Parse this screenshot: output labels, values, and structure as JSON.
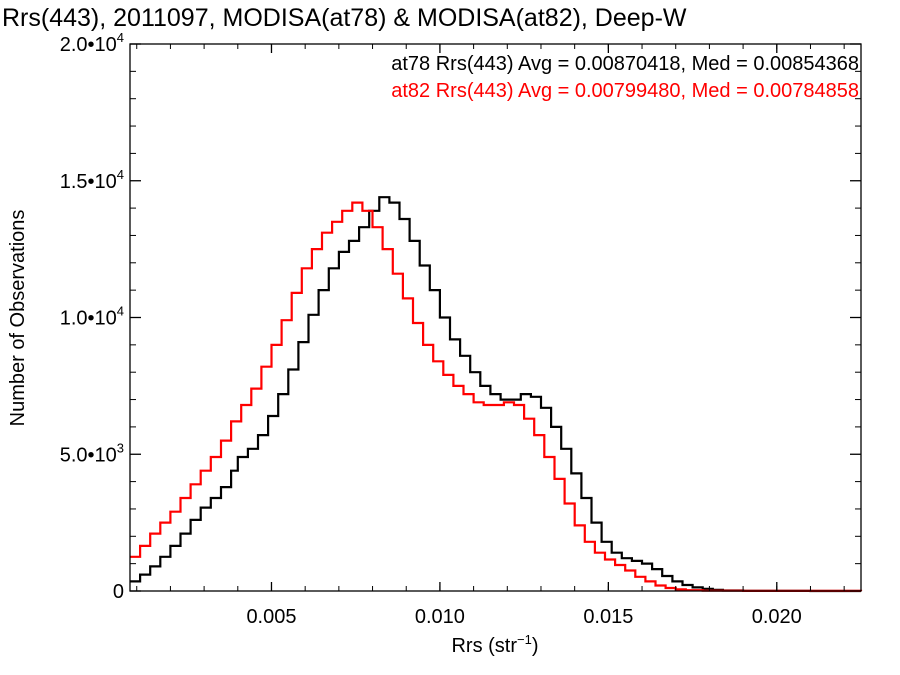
{
  "chart_data": {
    "type": "line",
    "title": "Rrs(443), 2011097, MODISA(at78) & MODISA(at82), Deep-W",
    "xlabel": "Rrs (str",
    "xlabel_sup": "−1",
    "xlabel_suffix": ")",
    "ylabel": "Number of Observations",
    "xlim": [
      0.0008,
      0.0225
    ],
    "ylim": [
      0,
      20000
    ],
    "x_ticks": [
      {
        "value": 0.005,
        "label": "0.005"
      },
      {
        "value": 0.01,
        "label": "0.010"
      },
      {
        "value": 0.015,
        "label": "0.015"
      },
      {
        "value": 0.02,
        "label": "0.020"
      }
    ],
    "y_ticks": [
      {
        "value": 0,
        "label": "0",
        "sup": ""
      },
      {
        "value": 5000,
        "label": "5.0•10",
        "sup": "3"
      },
      {
        "value": 10000,
        "label": "1.0•10",
        "sup": "4"
      },
      {
        "value": 15000,
        "label": "1.5•10",
        "sup": "4"
      },
      {
        "value": 20000,
        "label": "2.0•10",
        "sup": "4"
      }
    ],
    "legend": [
      {
        "text": "at78 Rrs(443) Avg = 0.00870418, Med = 0.00854368",
        "color": "#000000"
      },
      {
        "text": "at82 Rrs(443) Avg = 0.00799480, Med = 0.00784858",
        "color": "#ff0000"
      }
    ],
    "legend_placement": "top-right",
    "grid": false,
    "step_style": true,
    "series": [
      {
        "name": "at78",
        "color": "#000000",
        "points": [
          [
            0.0008,
            350
          ],
          [
            0.0011,
            600
          ],
          [
            0.0014,
            900
          ],
          [
            0.0017,
            1250
          ],
          [
            0.002,
            1650
          ],
          [
            0.0023,
            2100
          ],
          [
            0.0026,
            2600
          ],
          [
            0.0029,
            3050
          ],
          [
            0.0032,
            3400
          ],
          [
            0.0035,
            3800
          ],
          [
            0.0038,
            4400
          ],
          [
            0.004,
            4900
          ],
          [
            0.0043,
            5200
          ],
          [
            0.0046,
            5700
          ],
          [
            0.0049,
            6400
          ],
          [
            0.0052,
            7200
          ],
          [
            0.0055,
            8100
          ],
          [
            0.0058,
            9100
          ],
          [
            0.0061,
            10100
          ],
          [
            0.0064,
            11000
          ],
          [
            0.0067,
            11800
          ],
          [
            0.007,
            12400
          ],
          [
            0.0073,
            12800
          ],
          [
            0.0076,
            13300
          ],
          [
            0.0079,
            13900
          ],
          [
            0.0082,
            14400
          ],
          [
            0.0085,
            14200
          ],
          [
            0.0088,
            13600
          ],
          [
            0.0091,
            12800
          ],
          [
            0.0094,
            11900
          ],
          [
            0.0097,
            11000
          ],
          [
            0.01,
            10000
          ],
          [
            0.0103,
            9200
          ],
          [
            0.0106,
            8600
          ],
          [
            0.0109,
            8000
          ],
          [
            0.0112,
            7500
          ],
          [
            0.0115,
            7200
          ],
          [
            0.0118,
            7000
          ],
          [
            0.0121,
            7000
          ],
          [
            0.0124,
            7200
          ],
          [
            0.0127,
            7100
          ],
          [
            0.013,
            6700
          ],
          [
            0.0133,
            6000
          ],
          [
            0.0136,
            5200
          ],
          [
            0.0139,
            4300
          ],
          [
            0.0142,
            3400
          ],
          [
            0.0145,
            2500
          ],
          [
            0.0148,
            1800
          ],
          [
            0.0151,
            1400
          ],
          [
            0.0154,
            1200
          ],
          [
            0.0157,
            1100
          ],
          [
            0.016,
            1000
          ],
          [
            0.0163,
            800
          ],
          [
            0.0166,
            550
          ],
          [
            0.0169,
            350
          ],
          [
            0.0172,
            220
          ],
          [
            0.0175,
            130
          ],
          [
            0.0178,
            80
          ],
          [
            0.0181,
            40
          ],
          [
            0.0184,
            20
          ],
          [
            0.019,
            8
          ],
          [
            0.02,
            3
          ],
          [
            0.021,
            1
          ],
          [
            0.0225,
            0
          ]
        ]
      },
      {
        "name": "at82",
        "color": "#ff0000",
        "points": [
          [
            0.0008,
            1250
          ],
          [
            0.0011,
            1650
          ],
          [
            0.0014,
            2100
          ],
          [
            0.0017,
            2500
          ],
          [
            0.002,
            2900
          ],
          [
            0.0023,
            3400
          ],
          [
            0.0026,
            3900
          ],
          [
            0.0029,
            4400
          ],
          [
            0.0032,
            4900
          ],
          [
            0.0035,
            5500
          ],
          [
            0.0038,
            6200
          ],
          [
            0.0041,
            6800
          ],
          [
            0.0044,
            7400
          ],
          [
            0.0047,
            8200
          ],
          [
            0.005,
            9000
          ],
          [
            0.0053,
            9900
          ],
          [
            0.0056,
            10900
          ],
          [
            0.0059,
            11800
          ],
          [
            0.0062,
            12500
          ],
          [
            0.0065,
            13100
          ],
          [
            0.0068,
            13500
          ],
          [
            0.0071,
            13900
          ],
          [
            0.0074,
            14200
          ],
          [
            0.0077,
            13900
          ],
          [
            0.008,
            13300
          ],
          [
            0.0083,
            12500
          ],
          [
            0.0086,
            11600
          ],
          [
            0.0089,
            10700
          ],
          [
            0.0092,
            9800
          ],
          [
            0.0095,
            9000
          ],
          [
            0.0098,
            8400
          ],
          [
            0.0101,
            7900
          ],
          [
            0.0104,
            7500
          ],
          [
            0.0107,
            7200
          ],
          [
            0.011,
            6900
          ],
          [
            0.0113,
            6800
          ],
          [
            0.0116,
            6800
          ],
          [
            0.0119,
            6900
          ],
          [
            0.0122,
            6800
          ],
          [
            0.0125,
            6300
          ],
          [
            0.0128,
            5700
          ],
          [
            0.0131,
            4900
          ],
          [
            0.0134,
            4100
          ],
          [
            0.0137,
            3200
          ],
          [
            0.014,
            2400
          ],
          [
            0.0143,
            1800
          ],
          [
            0.0146,
            1400
          ],
          [
            0.0149,
            1150
          ],
          [
            0.0152,
            950
          ],
          [
            0.0155,
            750
          ],
          [
            0.0158,
            520
          ],
          [
            0.0161,
            350
          ],
          [
            0.0164,
            200
          ],
          [
            0.0167,
            110
          ],
          [
            0.017,
            60
          ],
          [
            0.0173,
            30
          ],
          [
            0.0178,
            10
          ],
          [
            0.019,
            3
          ],
          [
            0.0225,
            0
          ]
        ]
      }
    ]
  }
}
